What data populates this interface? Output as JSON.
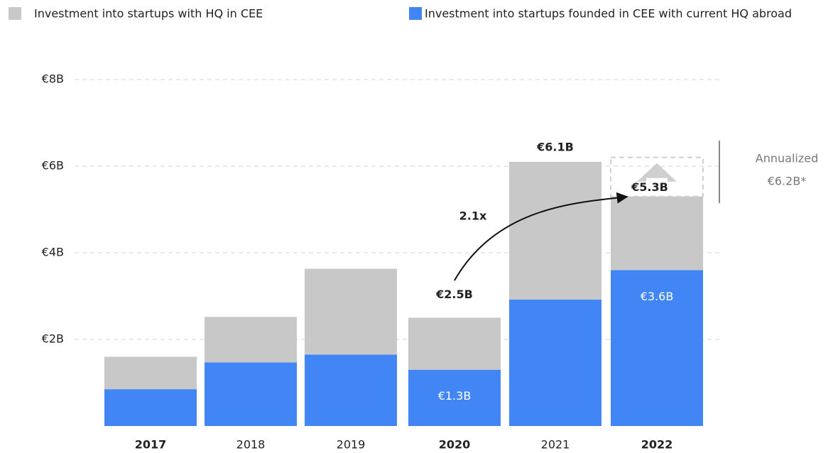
{
  "chart_data": {
    "type": "stacked_bar",
    "categories": [
      "2017",
      "2018",
      "2019",
      "2020",
      "2021",
      "2022"
    ],
    "bold": [
      true,
      false,
      false,
      true,
      false,
      true
    ],
    "series": [
      {
        "name": "Investment into startups founded in CEE with current HQ abroad",
        "color": "#4285f4",
        "values": [
          0.85,
          1.47,
          1.65,
          1.3,
          2.92,
          3.6
        ],
        "value_labels": [
          null,
          null,
          null,
          "€1.3B",
          null,
          "€3.6B"
        ]
      },
      {
        "name": "Investment into startups with HQ in CEE",
        "color": "#c8c8c8",
        "values": [
          0.75,
          1.05,
          1.98,
          1.2,
          3.18,
          1.7
        ]
      }
    ],
    "totals": [
      {
        "category": "2020",
        "label": "€2.5B"
      },
      {
        "category": "2021",
        "label": "€6.1B"
      },
      {
        "category": "2022",
        "label": "€5.3B"
      }
    ],
    "growth": {
      "label": "2.1x",
      "from": "2020",
      "to": "2022"
    },
    "annualized": {
      "label": "Annualized",
      "value": 6.2,
      "value_label": "€6.2B*",
      "category": "2022"
    },
    "ylim": [
      0,
      8
    ],
    "yticks": [
      {
        "value": 2,
        "label": "€2B"
      },
      {
        "value": 4,
        "label": "€4B"
      },
      {
        "value": 6,
        "label": "€6B"
      },
      {
        "value": 8,
        "label": "€8B"
      }
    ],
    "grid": true
  }
}
